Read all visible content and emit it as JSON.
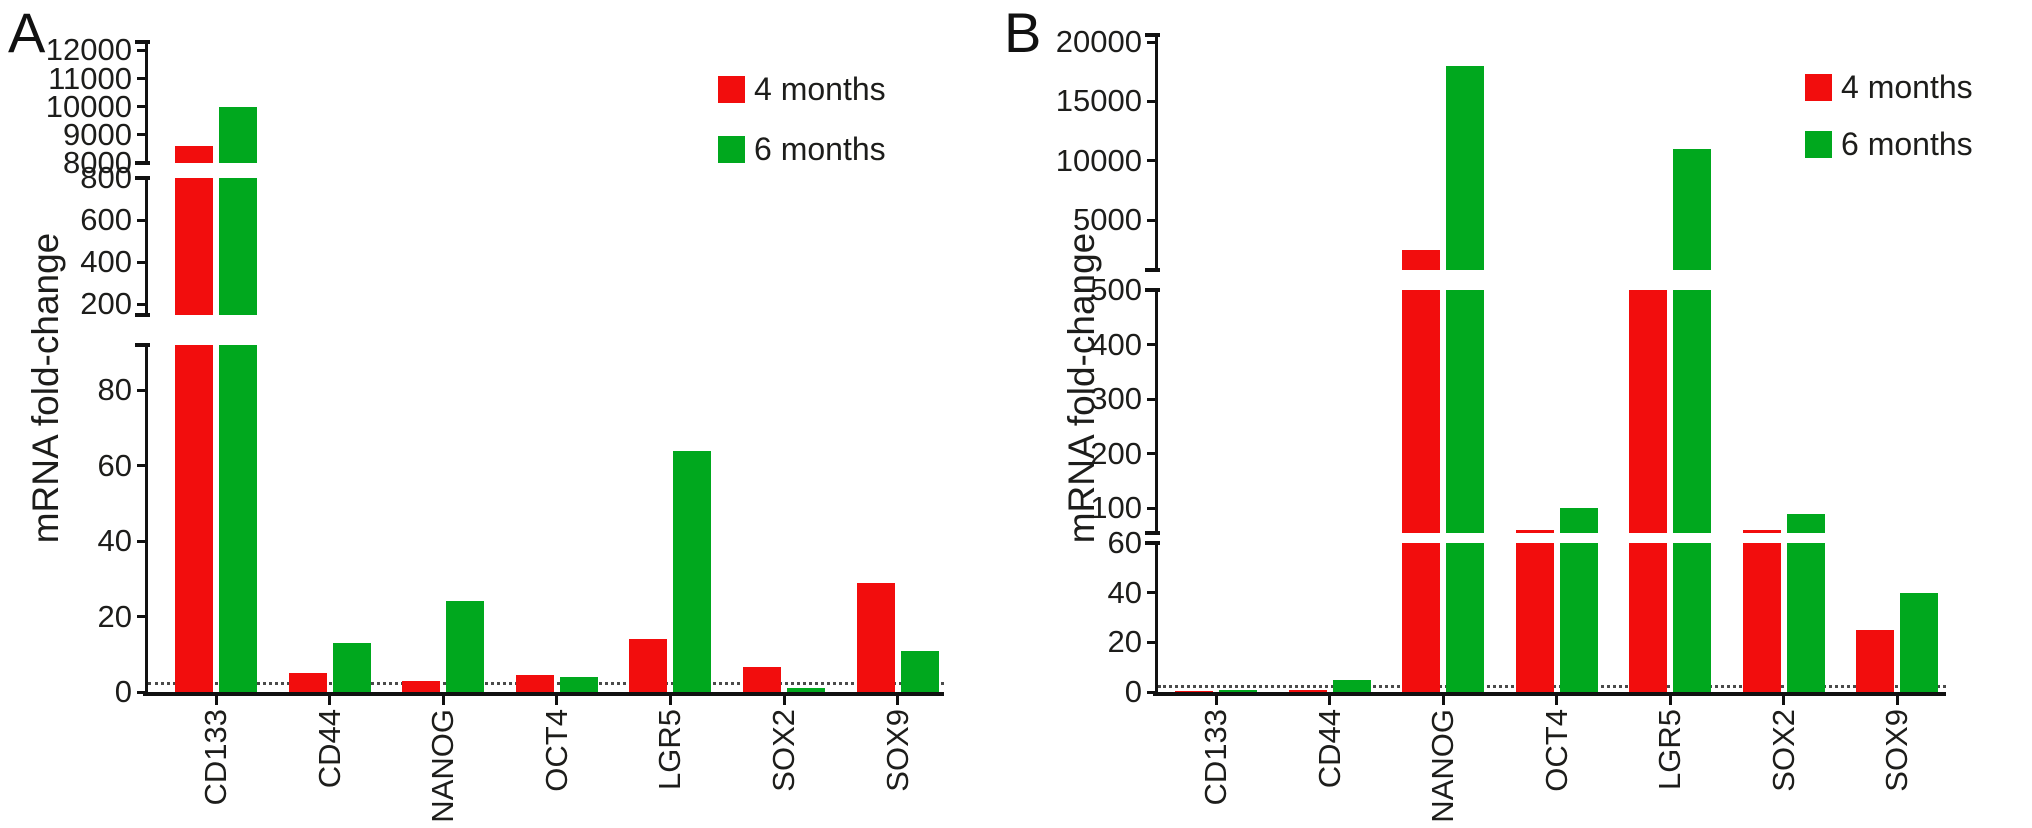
{
  "figure": {
    "description": "Two-panel bar chart figure with broken y-axes",
    "panel_labels": [
      "A",
      "B"
    ]
  },
  "chart_data": [
    {
      "type": "bar",
      "panel_label": "A",
      "title": "",
      "xlabel": "",
      "ylabel": "mRNA fold-change",
      "categories": [
        "CD133",
        "CD44",
        "NANOG",
        "OCT4",
        "LGR5",
        "SOX2",
        "SOX9"
      ],
      "series": [
        {
          "name": "4 months",
          "color": "#f20d0d",
          "values": [
            8600,
            5,
            3,
            4.5,
            14,
            6.5,
            29
          ]
        },
        {
          "name": "6 months",
          "color": "#00a81e",
          "values": [
            10000,
            13,
            24,
            4,
            64,
            1,
            11
          ]
        }
      ],
      "y_axis_segments": [
        {
          "range": [
            0,
            92
          ],
          "ticks": [
            0,
            20,
            40,
            60,
            80
          ]
        },
        {
          "range": [
            150,
            800
          ],
          "ticks": [
            200,
            400,
            600,
            800
          ]
        },
        {
          "range": [
            8000,
            12300
          ],
          "ticks": [
            8000,
            9000,
            10000,
            11000,
            12000
          ]
        }
      ],
      "threshold_line_value": 2,
      "legend_position": "top-right",
      "grid": false
    },
    {
      "type": "bar",
      "panel_label": "B",
      "title": "",
      "xlabel": "",
      "ylabel": "mRNA fold-change",
      "categories": [
        "CD133",
        "CD44",
        "NANOG",
        "OCT4",
        "LGR5",
        "SOX2",
        "SOX9"
      ],
      "series": [
        {
          "name": "4 months",
          "color": "#f20d0d",
          "values": [
            0.5,
            1,
            2500,
            60,
            500,
            60,
            25
          ]
        },
        {
          "name": "6 months",
          "color": "#00a81e",
          "values": [
            1,
            5,
            18000,
            100,
            11000,
            90,
            40
          ]
        }
      ],
      "y_axis_segments": [
        {
          "range": [
            0,
            60
          ],
          "ticks": [
            0,
            20,
            40,
            60
          ]
        },
        {
          "range": [
            55,
            500
          ],
          "ticks": [
            100,
            200,
            300,
            400,
            500
          ]
        },
        {
          "range": [
            800,
            20600
          ],
          "ticks": [
            5000,
            10000,
            15000,
            20000
          ]
        }
      ],
      "threshold_line_value": 2,
      "legend_position": "top-right",
      "grid": false
    }
  ]
}
